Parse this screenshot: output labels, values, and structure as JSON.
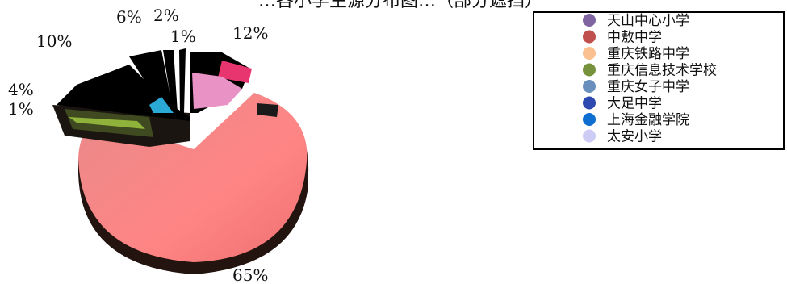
{
  "chart_data": {
    "type": "pie",
    "title": "…各小学生源分布图…（部分遮挡）",
    "slices": [
      {
        "name": "天山中心小学",
        "value": 12,
        "label": "12%",
        "color": "#e8356f"
      },
      {
        "name": "中敖中学",
        "value": 1,
        "label": "1%",
        "color": "#c0504d"
      },
      {
        "name": "重庆铁路中学",
        "value": 2,
        "label": "2%",
        "color": "#f2c396"
      },
      {
        "name": "重庆信息技术学校",
        "value": 6,
        "label": "6%",
        "color": "#76923c"
      },
      {
        "name": "重庆女子中学",
        "value": 10,
        "label": "10%",
        "color": "#6a8fbd"
      },
      {
        "name": "大足中学",
        "value": 1,
        "label": "1%",
        "color": "#2c4aa5"
      },
      {
        "name": "上海金融学院",
        "value": 4,
        "label": "4%",
        "color": "#1f5fc5"
      },
      {
        "name": "太安小学",
        "value": 65,
        "label": "65%",
        "color": "#ff8a8a"
      }
    ],
    "legend": [
      {
        "name": "天山中心小学",
        "color": "#8064a2"
      },
      {
        "name": "中敖中学",
        "color": "#c0504d"
      },
      {
        "name": "重庆铁路中学",
        "color": "#fac090"
      },
      {
        "name": "重庆信息技术学校",
        "color": "#76923c"
      },
      {
        "name": "重庆女子中学",
        "color": "#6a8fbd"
      },
      {
        "name": "大足中学",
        "color": "#2e49b0"
      },
      {
        "name": "上海金融学院",
        "color": "#0f6fd1"
      },
      {
        "name": "太安小学",
        "color": "#ccccf5"
      }
    ],
    "legend_position": "top-right"
  }
}
